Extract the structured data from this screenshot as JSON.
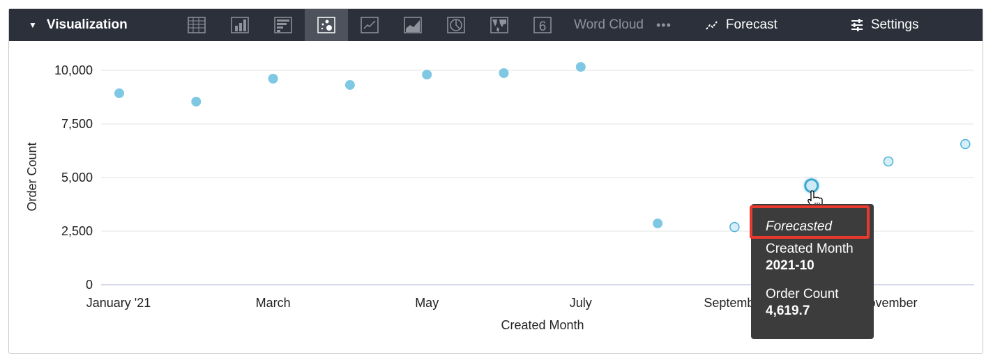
{
  "toolbar": {
    "title": "Visualization",
    "vis_types": [
      "table-icon",
      "column-icon",
      "bar-icon",
      "scatter-icon",
      "line-icon",
      "area-icon",
      "pie-icon",
      "map-icon",
      "single-value-icon"
    ],
    "active": "scatter-icon",
    "word_cloud": "Word Cloud",
    "more": "•••",
    "forecast": "Forecast",
    "settings": "Settings"
  },
  "chart_data": {
    "type": "scatter",
    "xlabel": "Created Month",
    "ylabel": "Order Count",
    "ylim": [
      0,
      10000
    ],
    "yticks": [
      "0",
      "2,500",
      "5,000",
      "7,500",
      "10,000"
    ],
    "ytick_values": [
      0,
      2500,
      5000,
      7500,
      10000
    ],
    "x": [
      "2021-01",
      "2021-02",
      "2021-03",
      "2021-04",
      "2021-05",
      "2021-06",
      "2021-07",
      "2021-08",
      "2021-09",
      "2021-10",
      "2021-11",
      "2021-12"
    ],
    "xtick_labels": [
      "January '21",
      "March",
      "May",
      "July",
      "September",
      "November"
    ],
    "xtick_months": [
      0,
      2,
      4,
      6,
      8,
      10
    ],
    "values": [
      8930,
      8540,
      9610,
      9320,
      9800,
      9870,
      10160,
      2860,
      2690,
      4619.7,
      5750,
      6560
    ],
    "forecasted": [
      false,
      false,
      false,
      false,
      false,
      false,
      false,
      false,
      true,
      true,
      true,
      true
    ],
    "color": "#7ec8e3",
    "grid": true
  },
  "tooltip": {
    "header": "Forecasted",
    "label1": "Created Month",
    "value1": "2021-10",
    "label2": "Order Count",
    "value2": "4,619.7",
    "highlight_color": "#e8392e"
  }
}
